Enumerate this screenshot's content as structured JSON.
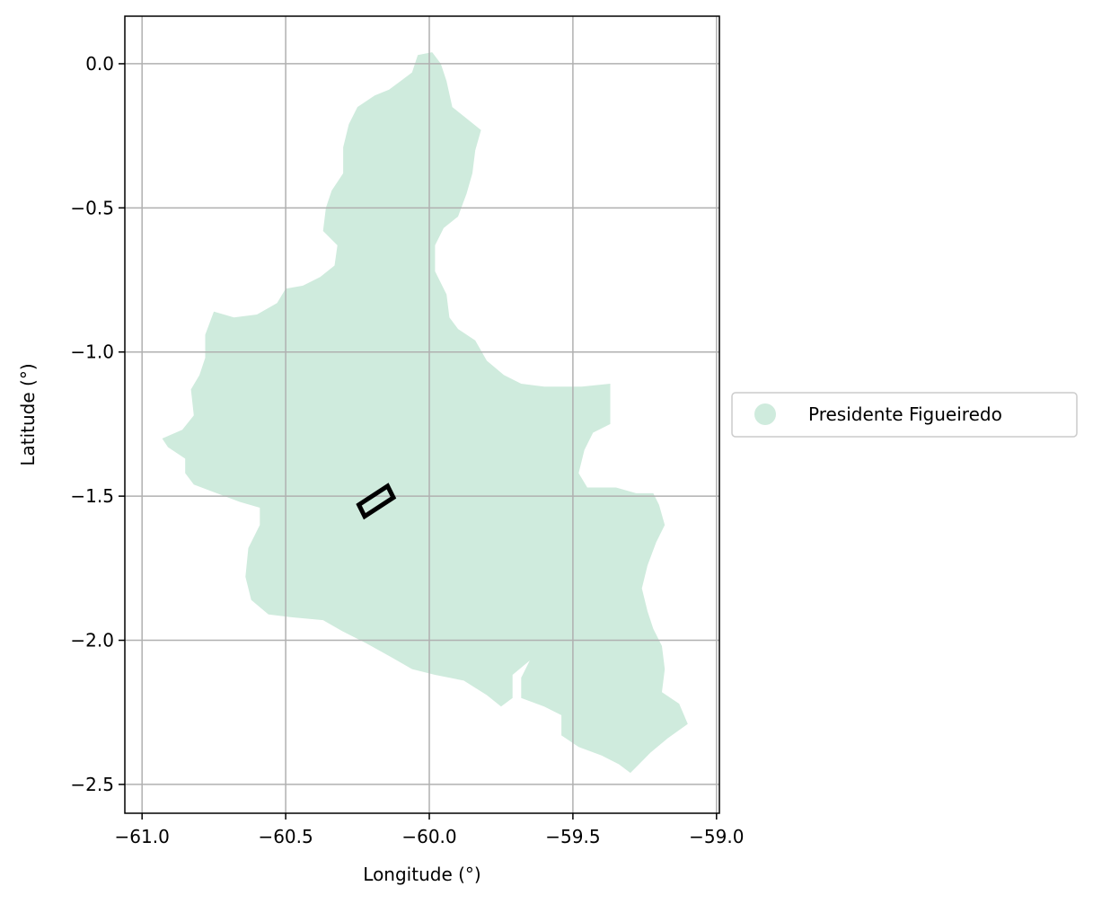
{
  "chart_data": {
    "type": "map",
    "xlabel": "Longitude (°)",
    "ylabel": "Latitude (°)",
    "xlim": [
      -61.06,
      -58.99
    ],
    "ylim": [
      -2.6,
      0.165
    ],
    "grid": true,
    "legend_placement": "right-center",
    "x_ticks": [
      {
        "value": -61.0,
        "label": "−61.0"
      },
      {
        "value": -60.5,
        "label": "−60.5"
      },
      {
        "value": -60.0,
        "label": "−60.0"
      },
      {
        "value": -59.5,
        "label": "−59.5"
      },
      {
        "value": -59.0,
        "label": "−59.0"
      }
    ],
    "y_ticks": [
      {
        "value": 0.0,
        "label": "0.0"
      },
      {
        "value": -0.5,
        "label": "−0.5"
      },
      {
        "value": -1.0,
        "label": "−1.0"
      },
      {
        "value": -1.5,
        "label": "−1.5"
      },
      {
        "value": -2.0,
        "label": "−2.0"
      },
      {
        "value": -2.5,
        "label": "−2.5"
      }
    ],
    "region": {
      "name": "Presidente Figueiredo",
      "color": "#cfebdd",
      "outline": [
        [
          -60.04,
          0.03
        ],
        [
          -59.99,
          0.04
        ],
        [
          -59.96,
          0.0
        ],
        [
          -59.94,
          -0.06
        ],
        [
          -59.92,
          -0.15
        ],
        [
          -59.82,
          -0.23
        ],
        [
          -59.84,
          -0.3
        ],
        [
          -59.85,
          -0.38
        ],
        [
          -59.87,
          -0.45
        ],
        [
          -59.9,
          -0.53
        ],
        [
          -59.95,
          -0.57
        ],
        [
          -59.98,
          -0.63
        ],
        [
          -59.98,
          -0.72
        ],
        [
          -59.94,
          -0.8
        ],
        [
          -59.93,
          -0.88
        ],
        [
          -59.9,
          -0.92
        ],
        [
          -59.84,
          -0.96
        ],
        [
          -59.8,
          -1.03
        ],
        [
          -59.74,
          -1.08
        ],
        [
          -59.68,
          -1.11
        ],
        [
          -59.6,
          -1.12
        ],
        [
          -59.47,
          -1.12
        ],
        [
          -59.37,
          -1.11
        ],
        [
          -59.37,
          -1.2
        ],
        [
          -59.37,
          -1.25
        ],
        [
          -59.43,
          -1.28
        ],
        [
          -59.46,
          -1.34
        ],
        [
          -59.48,
          -1.42
        ],
        [
          -59.45,
          -1.47
        ],
        [
          -59.35,
          -1.47
        ],
        [
          -59.28,
          -1.49
        ],
        [
          -59.22,
          -1.49
        ],
        [
          -59.2,
          -1.53
        ],
        [
          -59.18,
          -1.6
        ],
        [
          -59.21,
          -1.66
        ],
        [
          -59.24,
          -1.74
        ],
        [
          -59.26,
          -1.82
        ],
        [
          -59.24,
          -1.9
        ],
        [
          -59.22,
          -1.96
        ],
        [
          -59.19,
          -2.02
        ],
        [
          -59.18,
          -2.1
        ],
        [
          -59.19,
          -2.18
        ],
        [
          -59.13,
          -2.22
        ],
        [
          -59.1,
          -2.29
        ],
        [
          -59.17,
          -2.34
        ],
        [
          -59.23,
          -2.39
        ],
        [
          -59.27,
          -2.43
        ],
        [
          -59.3,
          -2.46
        ],
        [
          -59.34,
          -2.43
        ],
        [
          -59.4,
          -2.4
        ],
        [
          -59.48,
          -2.37
        ],
        [
          -59.54,
          -2.33
        ],
        [
          -59.54,
          -2.26
        ],
        [
          -59.6,
          -2.23
        ],
        [
          -59.68,
          -2.2
        ],
        [
          -59.68,
          -2.13
        ],
        [
          -59.65,
          -2.07
        ],
        [
          -59.71,
          -2.12
        ],
        [
          -59.71,
          -2.2
        ],
        [
          -59.75,
          -2.23
        ],
        [
          -59.8,
          -2.19
        ],
        [
          -59.88,
          -2.14
        ],
        [
          -59.98,
          -2.12
        ],
        [
          -60.06,
          -2.1
        ],
        [
          -60.13,
          -2.06
        ],
        [
          -60.22,
          -2.01
        ],
        [
          -60.3,
          -1.97
        ],
        [
          -60.37,
          -1.93
        ],
        [
          -60.48,
          -1.92
        ],
        [
          -60.56,
          -1.91
        ],
        [
          -60.62,
          -1.86
        ],
        [
          -60.64,
          -1.78
        ],
        [
          -60.63,
          -1.68
        ],
        [
          -60.59,
          -1.6
        ],
        [
          -60.59,
          -1.54
        ],
        [
          -60.66,
          -1.52
        ],
        [
          -60.74,
          -1.49
        ],
        [
          -60.82,
          -1.46
        ],
        [
          -60.85,
          -1.42
        ],
        [
          -60.85,
          -1.37
        ],
        [
          -60.91,
          -1.33
        ],
        [
          -60.93,
          -1.3
        ],
        [
          -60.86,
          -1.27
        ],
        [
          -60.82,
          -1.22
        ],
        [
          -60.83,
          -1.13
        ],
        [
          -60.8,
          -1.08
        ],
        [
          -60.78,
          -1.02
        ],
        [
          -60.78,
          -0.94
        ],
        [
          -60.75,
          -0.86
        ],
        [
          -60.68,
          -0.88
        ],
        [
          -60.6,
          -0.87
        ],
        [
          -60.53,
          -0.83
        ],
        [
          -60.5,
          -0.78
        ],
        [
          -60.44,
          -0.77
        ],
        [
          -60.38,
          -0.74
        ],
        [
          -60.33,
          -0.7
        ],
        [
          -60.32,
          -0.63
        ],
        [
          -60.37,
          -0.58
        ],
        [
          -60.36,
          -0.5
        ],
        [
          -60.34,
          -0.44
        ],
        [
          -60.3,
          -0.38
        ],
        [
          -60.3,
          -0.29
        ],
        [
          -60.28,
          -0.21
        ],
        [
          -60.25,
          -0.15
        ],
        [
          -60.19,
          -0.11
        ],
        [
          -60.14,
          -0.09
        ],
        [
          -60.1,
          -0.06
        ],
        [
          -60.06,
          -0.03
        ]
      ]
    },
    "marker_box": {
      "corners": [
        [
          -60.245,
          -1.53
        ],
        [
          -60.145,
          -1.465
        ],
        [
          -60.125,
          -1.505
        ],
        [
          -60.225,
          -1.57
        ]
      ]
    },
    "legend": [
      {
        "label": "Presidente Figueiredo",
        "color": "#cfebdd"
      }
    ]
  }
}
